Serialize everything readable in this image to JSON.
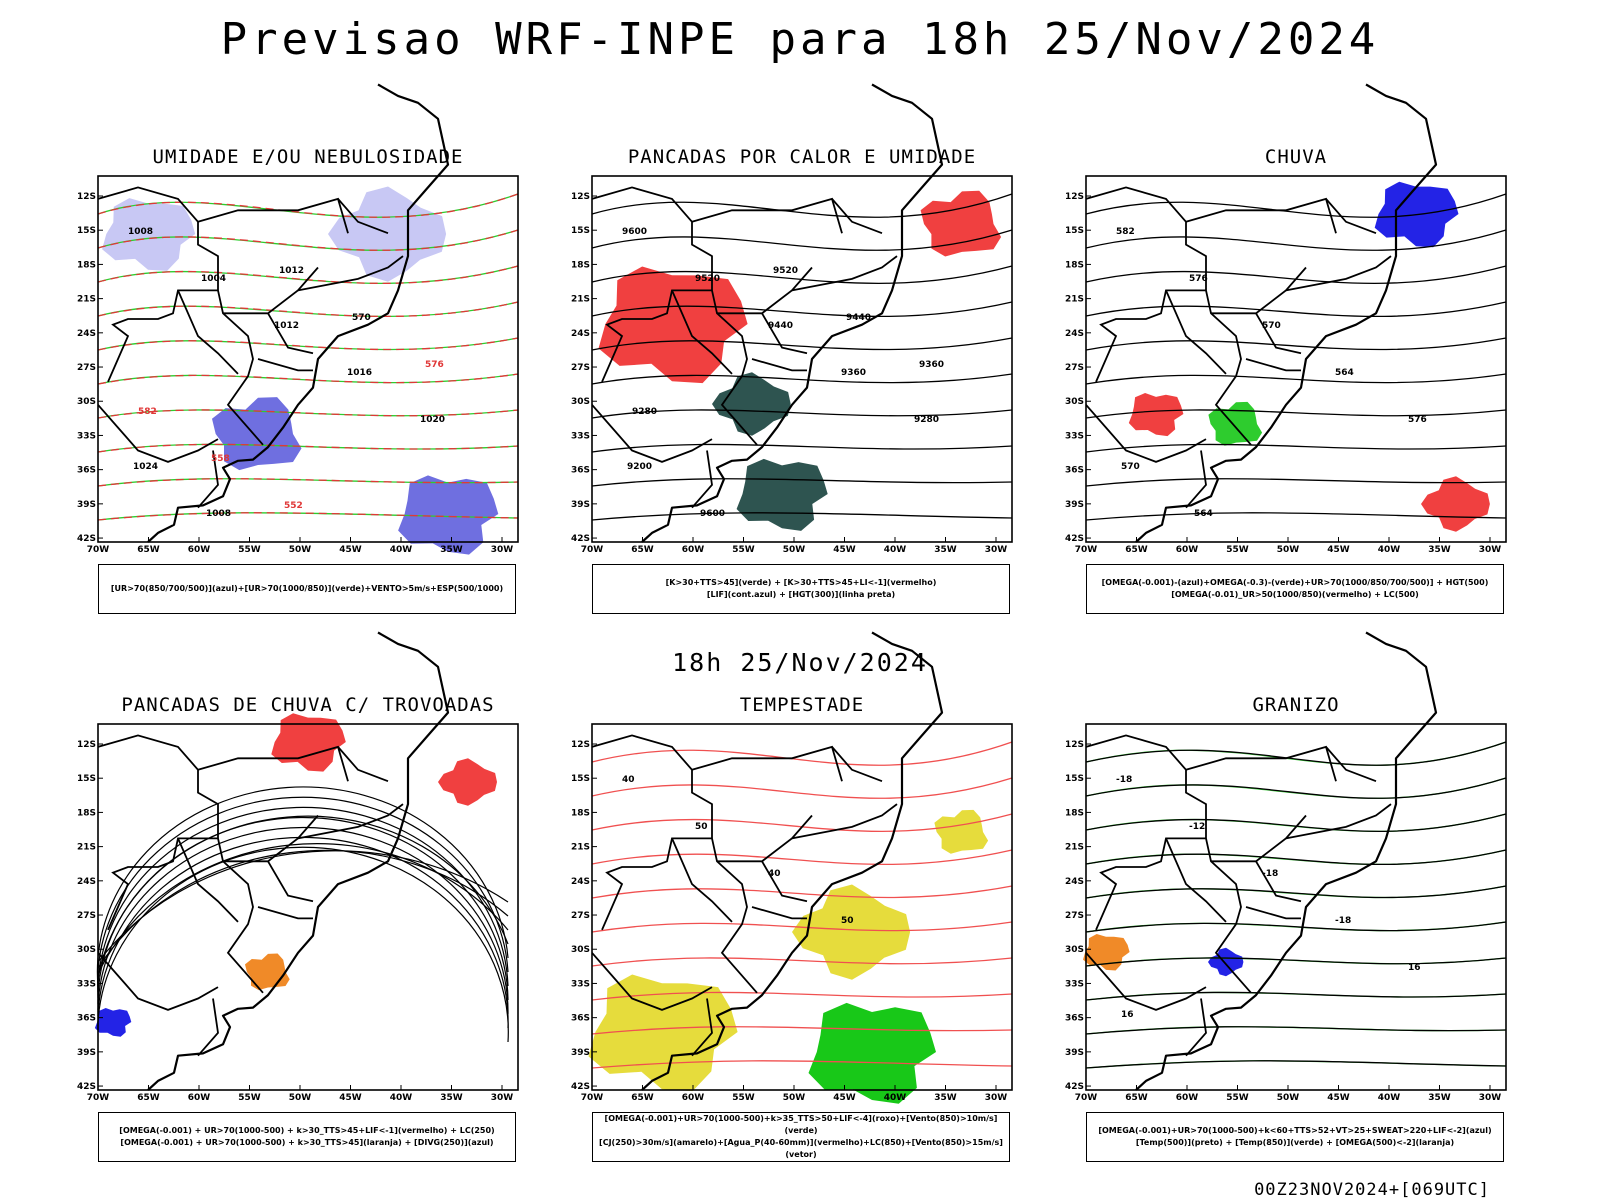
{
  "page": {
    "title": "Previsao WRF-INPE  para 18h 25/Nov/2024",
    "subtitle": "18h 25/Nov/2024",
    "footer": "00Z23NOV2024+[069UTC]"
  },
  "axes": {
    "lat_labels": [
      "12S",
      "15S",
      "18S",
      "21S",
      "24S",
      "27S",
      "30S",
      "33S",
      "36S",
      "39S",
      "42S"
    ],
    "lon_labels": [
      "70W",
      "65W",
      "60W",
      "55W",
      "50W",
      "45W",
      "40W",
      "35W",
      "30W"
    ]
  },
  "panels": [
    {
      "title": "UMIDADE E/OU NEBULOSIDADE",
      "legend": [
        "[UR>70(850/700/500)](azul)+[UR>70(1000/850)](verde)+VENTO>5m/s+ESP(500/1000)"
      ],
      "contour_labels": [
        "1008",
        "1004",
        "1012",
        "1016",
        "1020",
        "1024",
        "1008",
        "1012",
        "570",
        "576",
        "582",
        "558",
        "552"
      ],
      "colors": {
        "fill1": "#6f6fe0",
        "fill2": "#c8c8f4",
        "line1": "#2ecc2e",
        "line2": "#e03838"
      }
    },
    {
      "title": "PANCADAS POR CALOR E UMIDADE",
      "legend": [
        "[K>30+TTS>45](verde) + [K>30+TTS>45+LI<-1](vermelho)",
        "[LIF](cont.azul) + [HGT(300)](linha preta)"
      ],
      "contour_labels": [
        "9600",
        "9520",
        "9440",
        "9360",
        "9280",
        "9200",
        "9600",
        "9520",
        "9440",
        "9360",
        "9280"
      ],
      "colors": {
        "fill1": "#f04040",
        "fill2": "#2e5450",
        "line1": "#3a3aff",
        "line2": "#000000"
      }
    },
    {
      "title": "CHUVA",
      "legend": [
        "[OMEGA(-0.001)-(azul)+OMEGA(-0.3)-(verde)+UR>70(1000/850/700/500)] + HGT(500)",
        "[OMEGA(-0.01)_UR>50(1000/850)(vermelho) + LC(500)"
      ],
      "contour_labels": [
        "582",
        "576",
        "570",
        "564",
        "576",
        "570",
        "564"
      ],
      "colors": {
        "fill1": "#f04040",
        "fill2": "#2323e6",
        "line1": "#2ecc2e",
        "line2": "#000000"
      }
    },
    {
      "title": "PANCADAS DE CHUVA C/ TROVOADAS",
      "legend": [
        "[OMEGA(-0.001) + UR>70(1000-500) + k>30_TTS>45+LIF<-1](vermelho) + LC(250)",
        "[OMEGA(-0.001) + UR>70(1000-500) + k>30_TTS>45](laranja) + [DIVG(250)](azul)"
      ],
      "contour_labels": [],
      "colors": {
        "fill1": "#f04040",
        "fill2": "#f08a28",
        "line1": "#2323e6",
        "line2": "#000000"
      }
    },
    {
      "title": "TEMPESTADE",
      "legend": [
        "[OMEGA(-0.001)+UR>70(1000-500)+k>35_TTS>50+LIF<-4](roxo)+[Vento(850)>10m/s](verde)",
        "[CJ(250)>30m/s](amarelo)+[Agua_P(40-60mm)](vermelho)+LC(850)+[Vento(850)>15m/s](vetor)"
      ],
      "contour_labels": [
        "40",
        "50",
        "40",
        "50"
      ],
      "colors": {
        "fill1": "#e6dc3c",
        "fill2": "#18c818",
        "line1": "#f05050",
        "line2": "#000000"
      }
    },
    {
      "title": "GRANIZO",
      "legend": [
        "[OMEGA(-0.001)+UR>70(1000-500)+k<60+TTS>52+VT>25+SWEAT>220+LIF<-2](azul)",
        "[Temp(500)](preto) + [Temp(850)](verde) + [OMEGA(500)<-2](laranja)"
      ],
      "contour_labels": [
        "-18",
        "-12",
        "-18",
        "-18",
        "16",
        "16"
      ],
      "colors": {
        "fill1": "#f08a28",
        "fill2": "#2323e6",
        "line1": "#2ecc2e",
        "line2": "#000000"
      }
    }
  ]
}
